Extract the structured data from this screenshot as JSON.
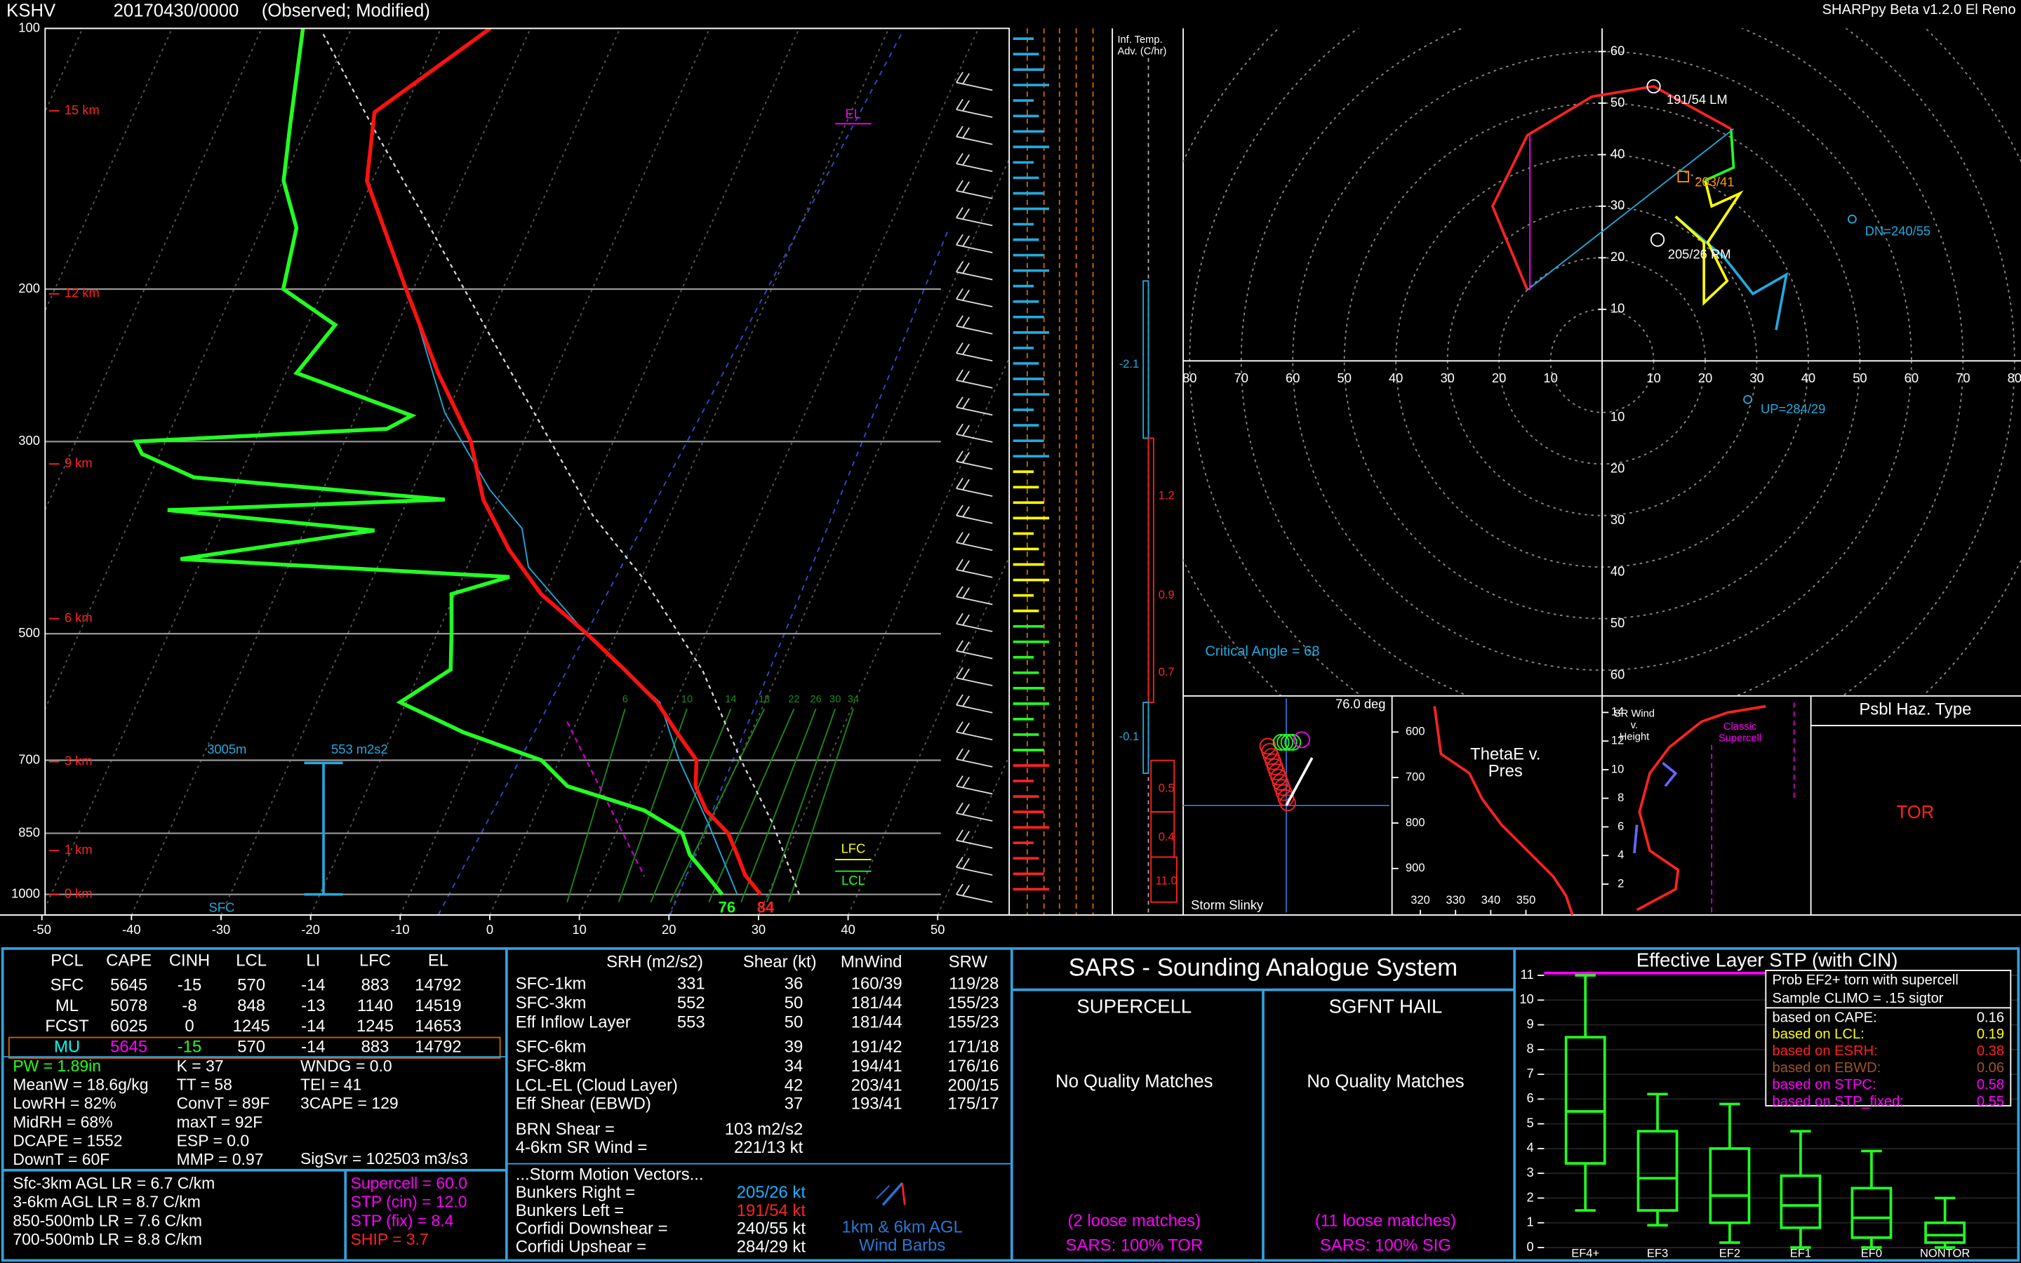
{
  "header": {
    "station": "KSHV",
    "time": "20170430/0000",
    "status": "(Observed; Modified)",
    "version": "SHARPpy Beta v1.2.0 El Reno"
  },
  "skewt": {
    "pressure_ticks": [
      100,
      200,
      300,
      500,
      700,
      850,
      1000
    ],
    "height_labels": [
      "15 km",
      "12 km",
      "9 km",
      "6 km",
      "3 km",
      "1 km",
      "0 km"
    ],
    "temperature_ticks": [
      -50,
      -40,
      -30,
      -20,
      -10,
      0,
      10,
      20,
      30,
      40,
      50
    ],
    "mixing_ratio_labels": [
      "6",
      "10",
      "14",
      "18",
      "22",
      "26",
      "30",
      "34"
    ],
    "el": "EL",
    "lfc": "LFC",
    "lcl": "LCL",
    "eff_layer_top": "3005m",
    "eff_layer_srh": "553 m2s2",
    "eff_layer_bottom": "SFC",
    "sfc_dewpoint": "76",
    "sfc_temperature": "84",
    "temperature": {
      "pressure": [
        1000,
        950,
        900,
        850,
        800,
        750,
        700,
        650,
        600,
        550,
        500,
        450,
        400,
        350,
        300,
        250,
        200,
        150,
        125,
        100
      ],
      "values": [
        29.2,
        26.5,
        24.6,
        22.5,
        18.9,
        16.5,
        15.3,
        11.7,
        8.0,
        2.7,
        -3.3,
        -10.4,
        -16.2,
        -21.6,
        -25.9,
        -33.0,
        -40.8,
        -50.6,
        -53.2,
        -44.5
      ]
    },
    "dewpoint": {
      "pressure": [
        1000,
        950,
        900,
        850,
        800,
        750,
        700,
        650,
        600,
        550,
        500,
        450,
        430,
        410,
        380,
        360,
        350,
        330,
        310,
        300,
        290,
        280,
        250,
        220,
        200,
        170,
        150,
        130,
        100
      ],
      "values": [
        24.9,
        22.2,
        19.3,
        17.4,
        12.0,
        2.2,
        -2.0,
        -12.1,
        -20.7,
        -16.7,
        -18.4,
        -20.4,
        -14.8,
        -52.4,
        -32.2,
        -56.3,
        -25.9,
        -55.0,
        -62.0,
        -63.3,
        -35.9,
        -33.8,
        -48.8,
        -46.9,
        -54.5,
        -56.1,
        -59.9,
        -61.9,
        -65.4
      ]
    }
  },
  "advection": {
    "title": [
      "Inf. Temp.",
      "Adv. (C/hr)"
    ],
    "values": [
      "-2.1",
      "1.2",
      "0.9",
      "0.7",
      "-0.1",
      "0.5",
      "0.4",
      "11.0"
    ]
  },
  "hodograph": {
    "ring_ticks": [
      10,
      20,
      30,
      40,
      50,
      60
    ],
    "x_ticks": [
      10,
      20,
      30,
      40,
      50,
      60,
      70,
      80
    ],
    "lm": "191/54 LM",
    "mean": "203/41",
    "rm": "205/26 RM",
    "downshear": "DN=240/55",
    "upshear": "UP=284/29",
    "critical_angle": "Critical Angle = 68"
  },
  "slinky": {
    "angle": "76.0 deg",
    "title": "Storm Slinky"
  },
  "thetae": {
    "title": [
      "ThetaE v.",
      "Pres"
    ],
    "pressure_ticks": [
      600,
      700,
      800,
      900
    ],
    "x_ticks": [
      320,
      330,
      340,
      350
    ]
  },
  "sr_wind": {
    "title": [
      "SR Wind",
      "v.",
      "Height"
    ],
    "classic": [
      "Classic",
      "Supercell"
    ],
    "height_ticks": [
      2,
      4,
      6,
      8,
      10,
      12,
      14
    ]
  },
  "hazard": {
    "title": "Psbl Haz. Type",
    "type": "TOR"
  },
  "parcels": {
    "headers": [
      "PCL",
      "CAPE",
      "CINH",
      "LCL",
      "LI",
      "LFC",
      "EL"
    ],
    "rows": [
      [
        "SFC",
        5645,
        -15,
        570,
        -14,
        883,
        14792
      ],
      [
        "ML",
        5078,
        -8,
        848,
        -13,
        1140,
        14519
      ],
      [
        "FCST",
        6025,
        0,
        1245,
        -14,
        1245,
        14653
      ],
      [
        "MU",
        5645,
        -15,
        570,
        -14,
        883,
        14792
      ]
    ]
  },
  "indices": {
    "col1": [
      "PW = 1.89in",
      "MeanW = 18.6g/kg",
      "LowRH = 82%",
      "MidRH = 68%",
      "DCAPE = 1552",
      "DownT = 60F"
    ],
    "col2": [
      "K = 37",
      "TT = 58",
      "ConvT = 89F",
      "maxT = 92F",
      "ESP = 0.0",
      "MMP = 0.97"
    ],
    "col3": [
      "WNDG = 0.0",
      "TEI = 41",
      "3CAPE = 129"
    ],
    "sigsvr": "SigSvr = 102503 m3/s3"
  },
  "lapse_rates": [
    "Sfc-3km AGL LR = 6.7 C/km",
    "3-6km AGL LR = 8.7 C/km",
    "850-500mb LR = 7.6 C/km",
    "700-500mb LR = 8.8 C/km"
  ],
  "composites": [
    "Supercell = 60.0",
    "STP (cin) = 12.0",
    "STP (fix) = 8.4",
    "SHIP = 3.7"
  ],
  "kinematics": {
    "headers": [
      "SRH (m2/s2)",
      "Shear (kt)",
      "MnWind",
      "SRW"
    ],
    "rows": [
      {
        "layer": "SFC-1km",
        "srh": 331,
        "shear": 36,
        "mnwind": "160/39",
        "srw": "119/28"
      },
      {
        "layer": "SFC-3km",
        "srh": 552,
        "shear": 50,
        "mnwind": "181/44",
        "srw": "155/23"
      },
      {
        "layer": "Eff Inflow Layer",
        "srh": 553,
        "shear": 50,
        "mnwind": "181/44",
        "srw": "155/23"
      },
      {
        "layer": "SFC-6km",
        "shear": 39,
        "mnwind": "191/42",
        "srw": "171/18"
      },
      {
        "layer": "SFC-8km",
        "shear": 34,
        "mnwind": "194/41",
        "srw": "176/16"
      },
      {
        "layer": "LCL-EL (Cloud Layer)",
        "shear": 42,
        "mnwind": "203/41",
        "srw": "200/15"
      },
      {
        "layer": "Eff Shear (EBWD)",
        "shear": 37,
        "mnwind": "193/41",
        "srw": "175/17"
      }
    ],
    "brn_label": "BRN Shear =",
    "brn_value": "103 m2/s2",
    "srw46_label": "4-6km SR Wind =",
    "srw46_value": "221/13 kt",
    "storm_motion_title": "...Storm Motion Vectors...",
    "storm_motions": [
      {
        "label": "Bunkers Right =",
        "value": "205/26 kt"
      },
      {
        "label": "Bunkers Left =",
        "value": "191/54 kt"
      },
      {
        "label": "Corfidi Downshear =",
        "value": "240/55 kt"
      },
      {
        "label": "Corfidi Upshear =",
        "value": "284/29 kt"
      }
    ],
    "barb_note": [
      "1km & 6km AGL",
      "Wind Barbs"
    ]
  },
  "sars": {
    "title": "SARS - Sounding Analogue System",
    "columns": [
      {
        "title": "SUPERCELL",
        "quality": "No Quality Matches",
        "loose": "(2 loose matches)",
        "result": "SARS: 100% TOR"
      },
      {
        "title": "SGFNT HAIL",
        "quality": "No Quality Matches",
        "loose": "(11 loose matches)",
        "result": "SARS: 100% SIG"
      }
    ]
  },
  "stp": {
    "title": "Effective Layer STP (with CIN)",
    "yticks": [
      0,
      1,
      2,
      3,
      4,
      5,
      6,
      7,
      8,
      9,
      10,
      11
    ],
    "categories": [
      "EF4+",
      "EF3",
      "EF2",
      "EF1",
      "EF0",
      "NONTOR"
    ],
    "boxes": [
      {
        "low": 1.5,
        "q1": 3.4,
        "median": 5.5,
        "q3": 8.5,
        "high": 11
      },
      {
        "low": 0.9,
        "q1": 1.5,
        "median": 2.8,
        "q3": 4.7,
        "high": 6.2
      },
      {
        "low": 0.2,
        "q1": 1.0,
        "median": 2.1,
        "q3": 4.0,
        "high": 5.8
      },
      {
        "low": 0,
        "q1": 0.8,
        "median": 1.7,
        "q3": 2.9,
        "high": 4.7
      },
      {
        "low": 0,
        "q1": 0.4,
        "median": 1.2,
        "q3": 2.4,
        "high": 3.9
      },
      {
        "low": 0,
        "q1": 0.2,
        "median": 0.5,
        "q3": 1.0,
        "high": 2.0
      }
    ],
    "legend_title": "Prob EF2+ torn with supercell",
    "climo": "Sample CLIMO = .15 sigtor",
    "probabilities": [
      {
        "label": "based on CAPE:",
        "value": 0.16,
        "color": "#ffffff"
      },
      {
        "label": "based on LCL:",
        "value": 0.19,
        "color": "#ffff00"
      },
      {
        "label": "based on ESRH:",
        "value": 0.38,
        "color": "#ff2020"
      },
      {
        "label": "based on EBWD:",
        "value": 0.06,
        "color": "#a0522d"
      },
      {
        "label": "based on STPC:",
        "value": 0.58,
        "color": "#ff00ff"
      },
      {
        "label": "based on STP_fixed:",
        "value": 0.55,
        "color": "#ff00ff"
      }
    ]
  }
}
